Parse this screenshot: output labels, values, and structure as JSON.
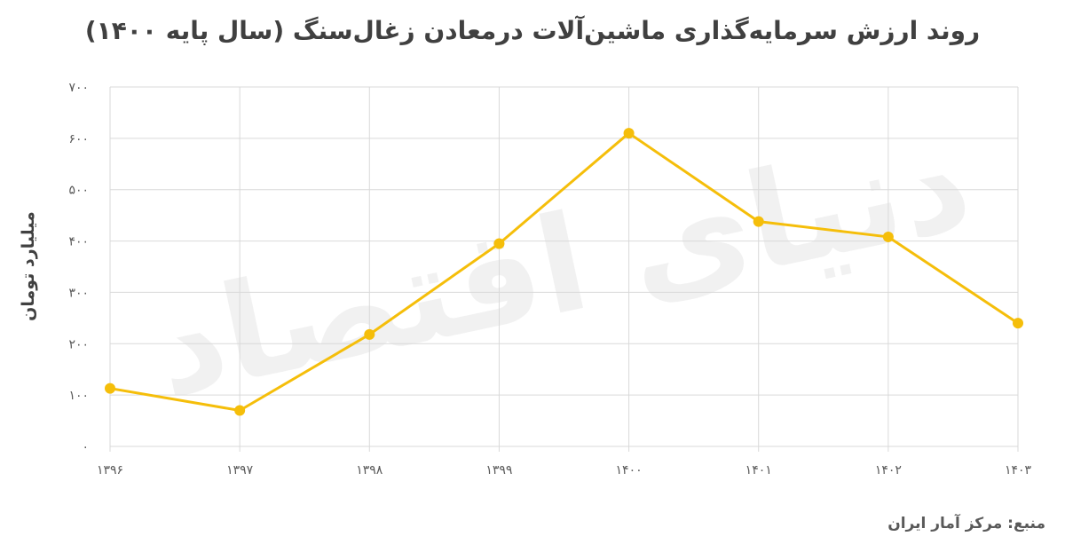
{
  "watermark": "دنیای اقتصاد",
  "source": "منبع: مرکز آمار ایران",
  "colors": {
    "line": "#F5BE0A",
    "grid": "#D9D9D9",
    "text": "#404040"
  },
  "chart_data": {
    "type": "line",
    "title": "روند ارزش سرمایه‌گذاری ماشین‌آلات درمعادن زغال‌سنگ (سال پایه ۱۴۰۰)",
    "xlabel": "",
    "ylabel": "میلیارد تومان",
    "categories": [
      "۱۳۹۶",
      "۱۳۹۷",
      "۱۳۹۸",
      "۱۳۹۹",
      "۱۴۰۰",
      "۱۴۰۱",
      "۱۴۰۲",
      "۱۴۰۳"
    ],
    "y_ticks": [
      "۰",
      "۱۰۰",
      "۲۰۰",
      "۳۰۰",
      "۴۰۰",
      "۵۰۰",
      "۶۰۰",
      "۷۰۰"
    ],
    "ylim": [
      0,
      700
    ],
    "grid": true,
    "legend": "none",
    "series": [
      {
        "values": [
          113,
          70,
          218,
          395,
          610,
          438,
          408,
          240
        ]
      }
    ]
  }
}
